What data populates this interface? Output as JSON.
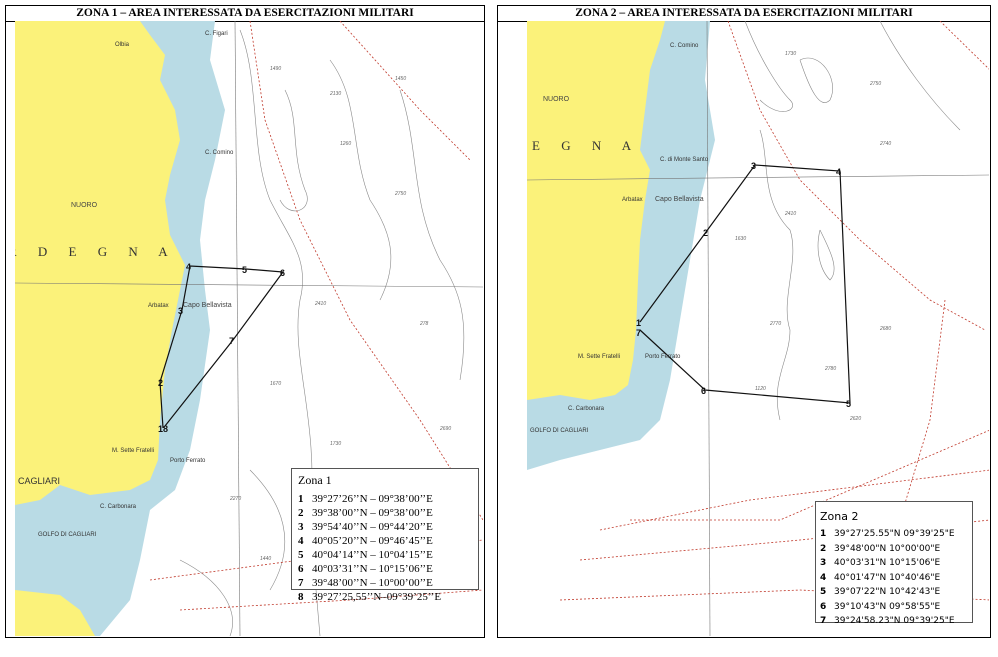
{
  "zona1": {
    "title": "ZONA 1 – AREA INTERESSATA DA ESERCITAZIONI MILITARI",
    "legend_title": "Zona 1",
    "points": [
      {
        "n": "1",
        "coord": "39°27’26’’N – 09°38’00’’E"
      },
      {
        "n": "2",
        "coord": "39°38’00’’N – 09°38’00’’E"
      },
      {
        "n": "3",
        "coord": "39°54’40’’N – 09°44’20’’E"
      },
      {
        "n": "4",
        "coord": "40°05’20’’N – 09°46’45’’E"
      },
      {
        "n": "5",
        "coord": "40°04’14’’N – 10°04’15’’E"
      },
      {
        "n": "6",
        "coord": "40°03’31’’N – 10°15’06’’E"
      },
      {
        "n": "7",
        "coord": "39°48’00’’N – 10°00’00’’E"
      },
      {
        "n": "8",
        "coord": "39°27’25,55’’N–09°39’25’’E"
      }
    ],
    "map_labels": {
      "region": "R D E G N A",
      "nuoro": "NUORO",
      "olbia": "Olbia",
      "arbatax": "Arbatax",
      "capo": "Capo Bellavista",
      "comino": "C. Comino",
      "cagliari": "CAGLIARI",
      "golfo": "GOLFO DI CAGLIARI",
      "carbonara": "C. Carbonara",
      "ferrato": "Porto Ferrato",
      "settefratelli": "M. Sette Fratelli",
      "figari": "C. Figari",
      "overlap_marker": "18"
    }
  },
  "zona2": {
    "title": "ZONA 2 – AREA INTERESSATA DA ESERCITAZIONI MILITARI",
    "legend_title": "Zona 2",
    "points": [
      {
        "n": "1",
        "coord": "39°27'25.55\"N 09°39'25\"E"
      },
      {
        "n": "2",
        "coord": "39°48'00\"N 10°00'00\"E"
      },
      {
        "n": "3",
        "coord": "40°03'31\"N 10°15'06\"E"
      },
      {
        "n": "4",
        "coord": "40°01'47\"N 10°40'46\"E"
      },
      {
        "n": "5",
        "coord": "39°07'22\"N 10°42'43\"E"
      },
      {
        "n": "6",
        "coord": "39°10'43\"N 09°58'55\"E"
      },
      {
        "n": "7",
        "coord": "39°24'58.23\"N 09°39'25\"E"
      }
    ],
    "map_labels": {
      "region": "E G N A",
      "nuoro": "NUORO",
      "arbatax": "Arbatax",
      "capo": "Capo Bellavista",
      "comino": "C. Comino",
      "carbonara": "C. Carbonara",
      "ferrato": "Porto Ferrato",
      "settefratelli": "M. Sette Fratelli",
      "golfo": "GOLFO DI CAGLIARI",
      "montesanto": "C. di Monte Santo"
    }
  },
  "colors": {
    "land": "#fbf27a",
    "shallow": "#b9dbe5",
    "sea": "#ffffff",
    "route": "#c0392b",
    "polygon": "#111111"
  }
}
